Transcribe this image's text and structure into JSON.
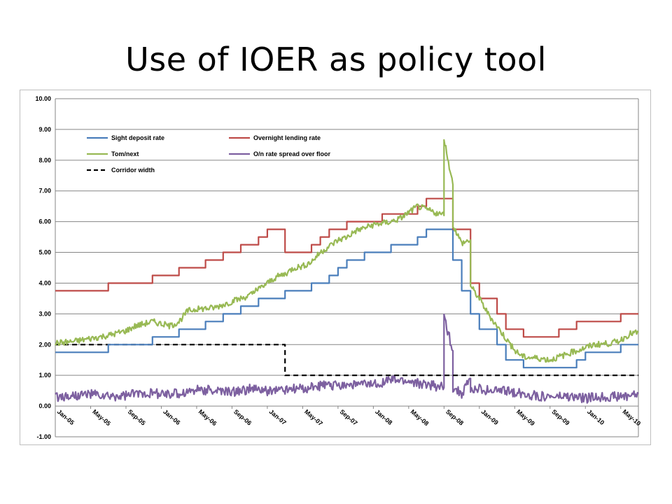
{
  "slide": {
    "title": "Use of IOER as policy tool"
  },
  "colors": {
    "sight": "#4a7ebb",
    "overnight": "#be4b48",
    "tomnext": "#98b954",
    "spread": "#7d60a0",
    "corridor": "#000000",
    "grid": "#868686"
  },
  "chart_data": {
    "type": "line",
    "title": "",
    "xlabel": "",
    "ylabel": "",
    "ylim": [
      -1,
      10
    ],
    "yticks": [
      "10.00",
      "9.00",
      "8.00",
      "7.00",
      "6.00",
      "5.00",
      "4.00",
      "3.00",
      "2.00",
      "1.00",
      "0.00",
      "-1.00"
    ],
    "xticks": [
      "Jan-05",
      "May-05",
      "Sep-05",
      "Jan-06",
      "May-06",
      "Sep-06",
      "Jan-07",
      "May-07",
      "Sep-07",
      "Jan-08",
      "May-08",
      "Sep-08",
      "Jan-09",
      "May-09",
      "Sep-09",
      "Jan-10",
      "May-10"
    ],
    "xrange": [
      "Jan-05",
      "Jul-10"
    ],
    "grid": true,
    "legend_position": "top-left",
    "legend": [
      {
        "name": "Sight deposit rate",
        "color_key": "sight",
        "dashed": false
      },
      {
        "name": "Overnight lending rate",
        "color_key": "overnight",
        "dashed": false
      },
      {
        "name": "Tom/next",
        "color_key": "tomnext",
        "dashed": false
      },
      {
        "name": "O/n rate spread over floor",
        "color_key": "spread",
        "dashed": false
      },
      {
        "name": "Corridor width",
        "color_key": "corridor",
        "dashed": true
      }
    ],
    "series": [
      {
        "name": "Sight deposit rate",
        "color_key": "sight",
        "shape": "step",
        "points": [
          [
            "Jan-05",
            1.75
          ],
          [
            "Jul-05",
            2.0
          ],
          [
            "Dec-05",
            2.25
          ],
          [
            "Mar-06",
            2.5
          ],
          [
            "Jun-06",
            2.75
          ],
          [
            "Aug-06",
            3.0
          ],
          [
            "Oct-06",
            3.25
          ],
          [
            "Dec-06",
            3.5
          ],
          [
            "Mar-07",
            3.75
          ],
          [
            "Jun-07",
            4.0
          ],
          [
            "Aug-07",
            4.25
          ],
          [
            "Sep-07",
            4.5
          ],
          [
            "Oct-07",
            4.75
          ],
          [
            "Dec-07",
            5.0
          ],
          [
            "Mar-08",
            5.25
          ],
          [
            "Jun-08",
            5.5
          ],
          [
            "Jul-08",
            5.75
          ],
          [
            "Oct-08",
            4.75
          ],
          [
            "Nov-08",
            3.75
          ],
          [
            "Dec-08",
            3.0
          ],
          [
            "Jan-09",
            2.5
          ],
          [
            "Mar-09",
            2.0
          ],
          [
            "Apr-09",
            1.5
          ],
          [
            "Jun-09",
            1.25
          ],
          [
            "Dec-09",
            1.5
          ],
          [
            "Jan-10",
            1.75
          ],
          [
            "May-10",
            2.0
          ],
          [
            "Jul-10",
            2.0
          ]
        ]
      },
      {
        "name": "Overnight lending rate",
        "color_key": "overnight",
        "shape": "step",
        "points": [
          [
            "Jan-05",
            3.75
          ],
          [
            "Jul-05",
            4.0
          ],
          [
            "Dec-05",
            4.25
          ],
          [
            "Mar-06",
            4.5
          ],
          [
            "Jun-06",
            4.75
          ],
          [
            "Aug-06",
            5.0
          ],
          [
            "Oct-06",
            5.25
          ],
          [
            "Dec-06",
            5.5
          ],
          [
            "Jan-07",
            5.75
          ],
          [
            "Mar-07",
            5.0
          ],
          [
            "Jun-07",
            5.25
          ],
          [
            "Jul-07",
            5.5
          ],
          [
            "Aug-07",
            5.75
          ],
          [
            "Oct-07",
            6.0
          ],
          [
            "Dec-07",
            6.0
          ],
          [
            "Feb-08",
            6.25
          ],
          [
            "Jun-08",
            6.5
          ],
          [
            "Jul-08",
            6.75
          ],
          [
            "Oct-08",
            6.25
          ],
          [
            "Oct-08",
            5.75
          ],
          [
            "Dec-08",
            4.0
          ],
          [
            "Jan-09",
            3.5
          ],
          [
            "Mar-09",
            3.0
          ],
          [
            "Apr-09",
            2.5
          ],
          [
            "Jun-09",
            2.25
          ],
          [
            "Oct-09",
            2.5
          ],
          [
            "Dec-09",
            2.75
          ],
          [
            "May-10",
            3.0
          ],
          [
            "Jul-10",
            3.0
          ]
        ]
      },
      {
        "name": "Tom/next",
        "color_key": "tomnext",
        "shape": "line",
        "points": [
          [
            "Jan-05",
            2.05
          ],
          [
            "Mar-05",
            2.1
          ],
          [
            "May-05",
            2.2
          ],
          [
            "Jul-05",
            2.3
          ],
          [
            "Sep-05",
            2.45
          ],
          [
            "Oct-05",
            2.6
          ],
          [
            "Dec-05",
            2.75
          ],
          [
            "Feb-06",
            2.6
          ],
          [
            "Mar-06",
            2.75
          ],
          [
            "Apr-06",
            3.1
          ],
          [
            "May-06",
            3.15
          ],
          [
            "Jul-06",
            3.2
          ],
          [
            "Aug-06",
            3.3
          ],
          [
            "Oct-06",
            3.5
          ],
          [
            "Nov-06",
            3.6
          ],
          [
            "Dec-06",
            3.8
          ],
          [
            "Jan-07",
            4.0
          ],
          [
            "Feb-07",
            4.2
          ],
          [
            "Mar-07",
            4.3
          ],
          [
            "Apr-07",
            4.5
          ],
          [
            "May-07",
            4.55
          ],
          [
            "Jun-07",
            4.7
          ],
          [
            "Jul-07",
            5.0
          ],
          [
            "Aug-07",
            5.2
          ],
          [
            "Sep-07",
            5.4
          ],
          [
            "Oct-07",
            5.5
          ],
          [
            "Nov-07",
            5.7
          ],
          [
            "Dec-07",
            5.8
          ],
          [
            "Jan-08",
            5.9
          ],
          [
            "Feb-08",
            5.95
          ],
          [
            "Mar-08",
            6.0
          ],
          [
            "Apr-08",
            6.1
          ],
          [
            "May-08",
            6.3
          ],
          [
            "Jun-08",
            6.5
          ],
          [
            "Jul-08",
            6.4
          ],
          [
            "Aug-08",
            6.3
          ],
          [
            "Sep-08",
            6.2
          ],
          [
            "Sep-08",
            8.7
          ],
          [
            "Oct-08",
            7.2
          ],
          [
            "Oct-08",
            5.9
          ],
          [
            "Nov-08",
            5.3
          ],
          [
            "Dec-08",
            5.4
          ],
          [
            "Dec-08",
            3.9
          ],
          [
            "Jan-09",
            3.5
          ],
          [
            "Feb-09",
            3.0
          ],
          [
            "Mar-09",
            2.6
          ],
          [
            "Apr-09",
            2.2
          ],
          [
            "May-09",
            1.8
          ],
          [
            "Jun-09",
            1.6
          ],
          [
            "Aug-09",
            1.55
          ],
          [
            "Sep-09",
            1.5
          ],
          [
            "Oct-09",
            1.6
          ],
          [
            "Nov-09",
            1.7
          ],
          [
            "Dec-09",
            1.8
          ],
          [
            "Jan-10",
            1.9
          ],
          [
            "Feb-10",
            2.0
          ],
          [
            "Apr-10",
            2.05
          ],
          [
            "May-10",
            2.15
          ],
          [
            "Jun-10",
            2.35
          ],
          [
            "Jul-10",
            2.4
          ]
        ]
      },
      {
        "name": "O/n rate spread over floor",
        "color_key": "spread",
        "shape": "line",
        "points": [
          [
            "Jan-05",
            0.3
          ],
          [
            "Mar-05",
            0.35
          ],
          [
            "May-05",
            0.4
          ],
          [
            "Jul-05",
            0.3
          ],
          [
            "Sep-05",
            0.35
          ],
          [
            "Nov-05",
            0.45
          ],
          [
            "Jan-06",
            0.4
          ],
          [
            "Mar-06",
            0.4
          ],
          [
            "May-06",
            0.55
          ],
          [
            "Jul-06",
            0.5
          ],
          [
            "Sep-06",
            0.45
          ],
          [
            "Nov-06",
            0.55
          ],
          [
            "Jan-07",
            0.5
          ],
          [
            "Mar-07",
            0.55
          ],
          [
            "May-07",
            0.55
          ],
          [
            "Jul-07",
            0.65
          ],
          [
            "Sep-07",
            0.7
          ],
          [
            "Nov-07",
            0.7
          ],
          [
            "Jan-08",
            0.7
          ],
          [
            "Mar-08",
            0.85
          ],
          [
            "May-08",
            0.8
          ],
          [
            "Jul-08",
            0.7
          ],
          [
            "Aug-08",
            0.65
          ],
          [
            "Sep-08",
            0.6
          ],
          [
            "Sep-08",
            2.9
          ],
          [
            "Oct-08",
            1.8
          ],
          [
            "Oct-08",
            0.6
          ],
          [
            "Nov-08",
            0.4
          ],
          [
            "Dec-08",
            0.9
          ],
          [
            "Dec-08",
            0.5
          ],
          [
            "Jan-09",
            0.55
          ],
          [
            "Mar-09",
            0.5
          ],
          [
            "May-09",
            0.45
          ],
          [
            "Jul-09",
            0.35
          ],
          [
            "Sep-09",
            0.3
          ],
          [
            "Nov-09",
            0.3
          ],
          [
            "Jan-10",
            0.25
          ],
          [
            "Mar-10",
            0.3
          ],
          [
            "May-10",
            0.3
          ],
          [
            "Jul-10",
            0.4
          ]
        ]
      },
      {
        "name": "Corridor width",
        "color_key": "corridor",
        "shape": "step",
        "dashed": true,
        "points": [
          [
            "Jan-05",
            2.0
          ],
          [
            "Mar-07",
            1.0
          ],
          [
            "Jul-10",
            1.0
          ]
        ]
      }
    ]
  }
}
